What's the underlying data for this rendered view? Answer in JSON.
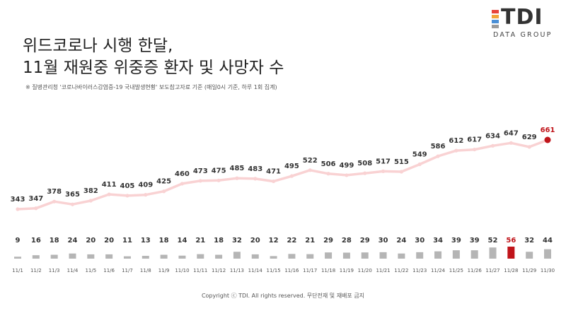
{
  "header": {
    "title_line1": "위드코로나 시행 한달,",
    "title_line2": "11월 재원중 위중증 환자 및 사망자 수",
    "note": "※ 질병관리청 '코로나바이러스감염증-19 국내발생현황' 보도참고자료 기준 (매일0시 기준, 하루 1회 집계)"
  },
  "logo": {
    "text": "TDI",
    "subtitle": "DATA GROUP",
    "colors": [
      "#e8433a",
      "#f2a43a",
      "#4a8fd6",
      "#9b9b9b"
    ]
  },
  "footer": {
    "copyright": "Copyright ⓒ TDI. All rights reserved. 무단전재 및 재배포 금지"
  },
  "chart_data": {
    "type": "line",
    "categories": [
      "11/1",
      "11/2",
      "11/3",
      "11/4",
      "11/5",
      "11/6",
      "11/7",
      "11/8",
      "11/9",
      "11/10",
      "11/11",
      "11/12",
      "11/13",
      "11/14",
      "11/15",
      "11/16",
      "11/17",
      "11/18",
      "11/19",
      "11/20",
      "11/21",
      "11/22",
      "11/23",
      "11/24",
      "11/25",
      "11/26",
      "11/27",
      "11/28",
      "11/29",
      "11/30"
    ],
    "series": [
      {
        "type": "line",
        "values": [
          343,
          347,
          378,
          365,
          382,
          411,
          405,
          409,
          425,
          460,
          473,
          475,
          485,
          483,
          471,
          495,
          522,
          506,
          499,
          508,
          517,
          515,
          549,
          586,
          612,
          617,
          634,
          647,
          629,
          661
        ],
        "color": "#f9d2d3",
        "highlight_index": 29,
        "highlight_color": "#c0141a"
      },
      {
        "type": "bar",
        "values": [
          9,
          16,
          18,
          24,
          20,
          20,
          11,
          13,
          18,
          14,
          21,
          18,
          32,
          20,
          12,
          22,
          21,
          29,
          28,
          29,
          30,
          24,
          30,
          34,
          39,
          39,
          52,
          56,
          32,
          44
        ],
        "color": "#b5b5b5",
        "highlight_index": 27,
        "highlight_color": "#c0141a"
      }
    ],
    "grid": false,
    "legend": "none"
  }
}
